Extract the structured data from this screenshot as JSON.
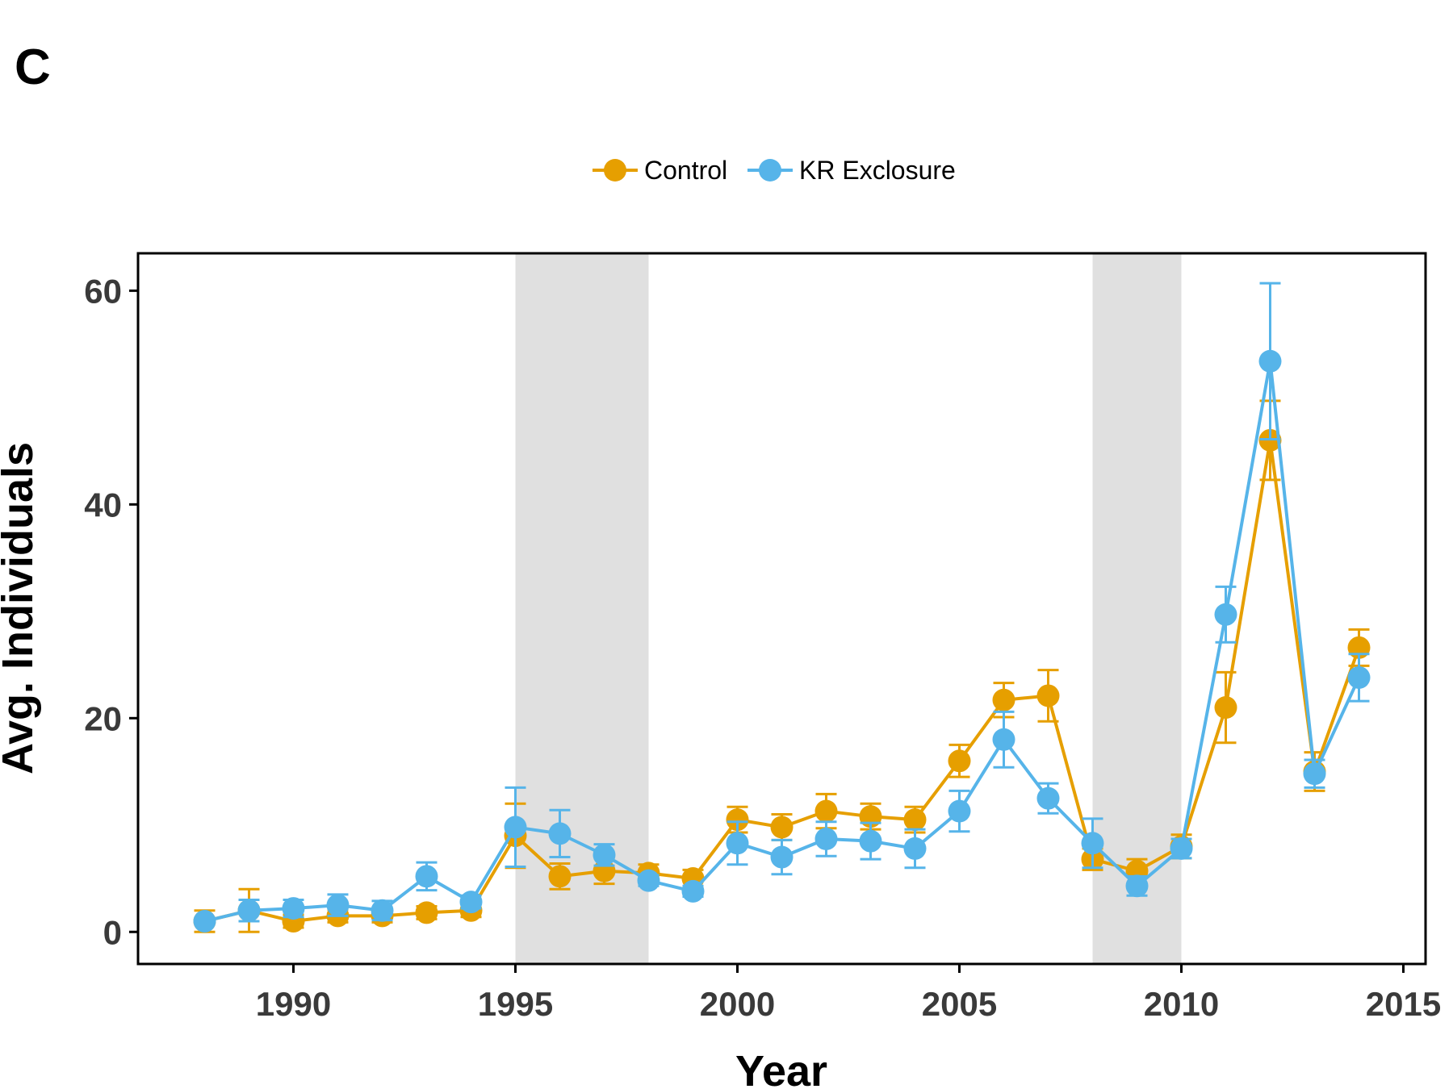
{
  "panel_label": "C",
  "colors": {
    "control": "#E69F00",
    "kr_exclosure": "#56B4E9",
    "shade": "#E0E0E0"
  },
  "chart_data": {
    "type": "line",
    "title": "",
    "xlabel": "Year",
    "ylabel": "Avg. Individuals",
    "xlim": [
      1986.5,
      2015.5
    ],
    "ylim": [
      -3,
      63.5
    ],
    "xticks": [
      1990,
      1995,
      2000,
      2005,
      2010,
      2015
    ],
    "yticks": [
      0,
      20,
      40,
      60
    ],
    "legend": {
      "position": "top",
      "entries": [
        "Control",
        "KR Exclosure"
      ]
    },
    "shaded_periods": [
      [
        1995,
        1998
      ],
      [
        2008,
        2010
      ]
    ],
    "grid": false,
    "series": [
      {
        "name": "Control",
        "x": [
          1988,
          1989,
          1990,
          1991,
          1992,
          1993,
          1994,
          1995,
          1996,
          1997,
          1998,
          1999,
          2000,
          2001,
          2002,
          2003,
          2004,
          2005,
          2006,
          2007,
          2008,
          2009,
          2010,
          2011,
          2012,
          2013,
          2014
        ],
        "y": [
          1.0,
          2.0,
          1.0,
          1.5,
          1.5,
          1.8,
          2.0,
          9.0,
          5.2,
          5.7,
          5.5,
          5.0,
          10.5,
          9.8,
          11.3,
          10.8,
          10.5,
          16.0,
          21.7,
          22.1,
          6.8,
          5.7,
          8.0,
          21.0,
          46.0,
          15.0,
          26.6
        ],
        "error": [
          1.0,
          2.0,
          0.6,
          0.6,
          0.6,
          0.6,
          0.6,
          3.0,
          1.2,
          1.2,
          0.8,
          0.8,
          1.2,
          1.2,
          1.6,
          1.2,
          1.2,
          1.5,
          1.6,
          2.4,
          1.0,
          1.1,
          1.1,
          3.3,
          3.7,
          1.8,
          1.7
        ]
      },
      {
        "name": "KR Exclosure",
        "x": [
          1988,
          1989,
          1990,
          1991,
          1992,
          1993,
          1994,
          1995,
          1996,
          1997,
          1998,
          1999,
          2000,
          2001,
          2002,
          2003,
          2004,
          2005,
          2006,
          2007,
          2008,
          2009,
          2010,
          2011,
          2012,
          2013,
          2014
        ],
        "y": [
          1.0,
          2.0,
          2.2,
          2.5,
          2.0,
          5.2,
          2.8,
          9.8,
          9.2,
          7.2,
          4.8,
          3.8,
          8.3,
          7.0,
          8.7,
          8.5,
          7.8,
          11.3,
          18.0,
          12.5,
          8.3,
          4.3,
          7.8,
          29.7,
          53.4,
          14.8,
          23.8
        ],
        "error": [
          0.0,
          1.0,
          0.8,
          1.0,
          0.9,
          1.3,
          0.6,
          3.7,
          2.2,
          1.0,
          0.5,
          0.5,
          2.0,
          1.6,
          1.6,
          1.7,
          1.8,
          1.9,
          2.6,
          1.4,
          2.3,
          0.9,
          0.9,
          2.6,
          7.3,
          1.3,
          2.2
        ]
      }
    ]
  }
}
